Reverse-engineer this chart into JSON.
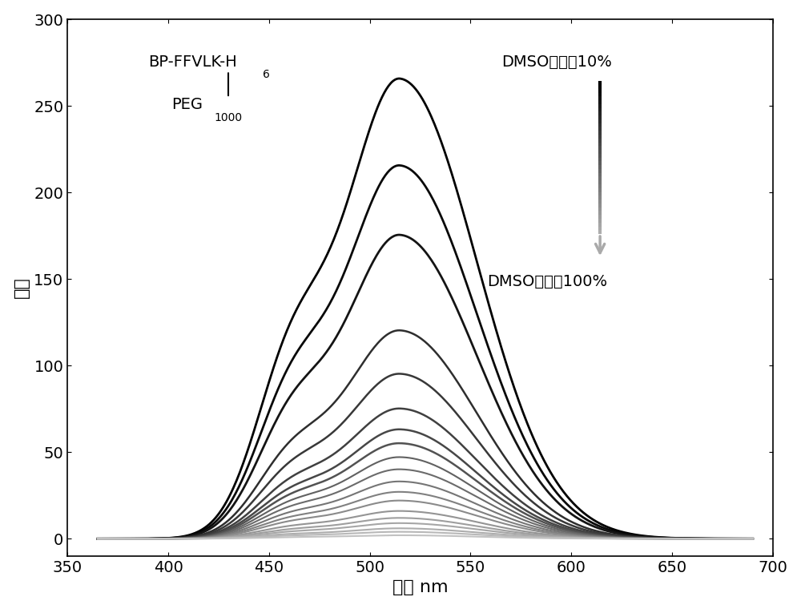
{
  "xlabel": "波长 nm",
  "ylabel": "强度",
  "xlim": [
    350,
    700
  ],
  "ylim": [
    -10,
    300
  ],
  "xticks": [
    350,
    400,
    450,
    500,
    550,
    600,
    650,
    700
  ],
  "yticks": [
    0,
    50,
    100,
    150,
    200,
    250,
    300
  ],
  "label_top": "DMSO体积比10%",
  "label_bottom": "DMSO体积比100%",
  "text_bp": "BP-FFVLK-H",
  "text_sub6": "6",
  "text_peg": "PEG",
  "text_sub1000": "1000",
  "peak_wavelength": 515,
  "shoulder_wavelength": 460,
  "n_curves": 19,
  "peak_intensities": [
    265,
    215,
    175,
    120,
    95,
    75,
    63,
    55,
    47,
    40,
    33,
    27,
    22,
    16,
    12,
    9,
    6,
    4,
    2
  ],
  "gray_values": [
    0.0,
    0.03,
    0.08,
    0.18,
    0.22,
    0.25,
    0.28,
    0.32,
    0.38,
    0.42,
    0.46,
    0.5,
    0.54,
    0.58,
    0.62,
    0.65,
    0.68,
    0.72,
    0.76
  ],
  "background_color": "#ffffff",
  "figsize": [
    10.0,
    7.6
  ],
  "dpi": 100
}
